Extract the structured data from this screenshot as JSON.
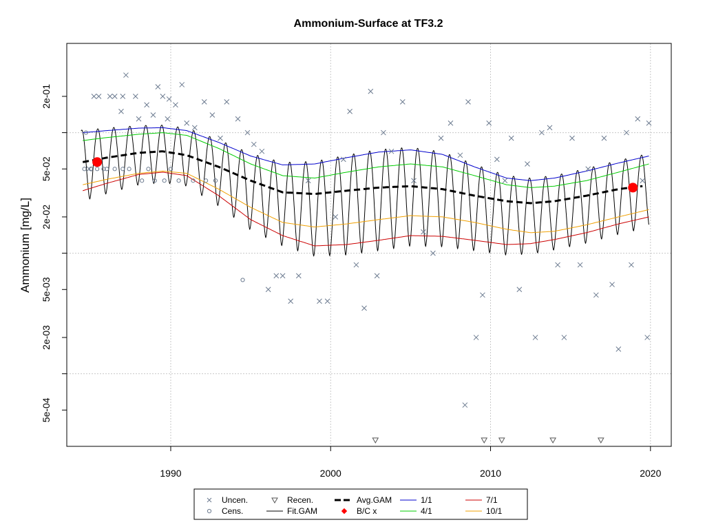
{
  "chart_data": {
    "type": "line",
    "title": "Ammonium-Surface at TF3.2",
    "xlabel": "",
    "ylabel": "Ammonium [mg/L]",
    "y_scale": "log",
    "xlim": [
      1983.5,
      2021.3
    ],
    "ylim": [
      0.00025,
      0.55
    ],
    "x_ticks": [
      {
        "value": 1990,
        "label": "1990"
      },
      {
        "value": 2000,
        "label": "2000"
      },
      {
        "value": 2010,
        "label": "2010"
      },
      {
        "value": 2020,
        "label": "2020"
      }
    ],
    "y_ticks": [
      {
        "value": 0.2,
        "label": "2e-01"
      },
      {
        "value": 0.05,
        "label": "5e-02"
      },
      {
        "value": 0.02,
        "label": "2e-02"
      },
      {
        "value": 0.005,
        "label": "5e-03"
      },
      {
        "value": 0.002,
        "label": "2e-03"
      },
      {
        "value": 0.0005,
        "label": "5e-04"
      }
    ],
    "y_gridlines": [
      0.1,
      0.01,
      0.001
    ],
    "x_gridlines": [
      1990,
      2000,
      2010,
      2020
    ],
    "grid": true,
    "legend_position": "bottom",
    "legend": [
      {
        "label": "Uncen.",
        "symbol": "x",
        "color": "#6b7a8f"
      },
      {
        "label": "Cens.",
        "symbol": "circle",
        "color": "#6b7a8f"
      },
      {
        "label": "Recen.",
        "symbol": "triangle-down",
        "color": "#555555"
      },
      {
        "label": "Fit.GAM",
        "symbol": "line",
        "color": "#000000"
      },
      {
        "label": "Avg.GAM",
        "symbol": "dashed-line",
        "color": "#000000"
      },
      {
        "label": "B/C x",
        "symbol": "diamond",
        "color": "#ff0000"
      },
      {
        "label": "1/1",
        "symbol": "line",
        "color": "#0000cc"
      },
      {
        "label": "4/1",
        "symbol": "line",
        "color": "#00cc00"
      },
      {
        "label": "7/1",
        "symbol": "line",
        "color": "#cc0000"
      },
      {
        "label": "10/1",
        "symbol": "line",
        "color": "#f0a000"
      }
    ],
    "colors": {
      "uncen": "#6b7a8f",
      "cens": "#6b7a8f",
      "recen": "#555555",
      "fit": "#000000",
      "avg": "#000000",
      "bc": "#ff0000",
      "jan": "#0000cc",
      "apr": "#00cc00",
      "jul": "#cc0000",
      "oct": "#f0a000"
    },
    "series": [
      {
        "name": "Avg.GAM",
        "x": [
          1984.5,
          1986,
          1988,
          1989.5,
          1991,
          1993,
          1995,
          1997,
          1999,
          2001,
          2003,
          2005,
          2007,
          2009,
          2011,
          2012.5,
          2014,
          2016,
          2018,
          2019.5
        ],
        "y": [
          0.057,
          0.062,
          0.068,
          0.07,
          0.065,
          0.052,
          0.04,
          0.032,
          0.031,
          0.033,
          0.035,
          0.036,
          0.034,
          0.03,
          0.027,
          0.026,
          0.027,
          0.03,
          0.034,
          0.036
        ]
      },
      {
        "name": "1/1",
        "x": [
          1984.5,
          1986,
          1988,
          1989.5,
          1991,
          1993,
          1995,
          1997,
          1999,
          2001,
          2003,
          2005,
          2007,
          2009,
          2011,
          2012.5,
          2014,
          2016,
          2018,
          2019.9
        ],
        "y": [
          0.1,
          0.104,
          0.109,
          0.11,
          0.104,
          0.083,
          0.064,
          0.054,
          0.055,
          0.062,
          0.069,
          0.072,
          0.066,
          0.052,
          0.042,
          0.04,
          0.042,
          0.048,
          0.056,
          0.064
        ]
      },
      {
        "name": "4/1",
        "x": [
          1984.5,
          1986,
          1988,
          1989.5,
          1991,
          1993,
          1995,
          1997,
          1999,
          2001,
          2003,
          2005,
          2007,
          2009,
          2011,
          2012.5,
          2014,
          2016,
          2018,
          2019.9
        ],
        "y": [
          0.086,
          0.091,
          0.097,
          0.1,
          0.095,
          0.074,
          0.055,
          0.044,
          0.042,
          0.047,
          0.052,
          0.055,
          0.052,
          0.044,
          0.037,
          0.035,
          0.036,
          0.04,
          0.047,
          0.055
        ]
      },
      {
        "name": "7/1",
        "x": [
          1984.5,
          1986,
          1988,
          1989.5,
          1991,
          1993,
          1995,
          1997,
          1999,
          2001,
          2003,
          2005,
          2007,
          2009,
          2011,
          2012.5,
          2014,
          2016,
          2018,
          2019.9
        ],
        "y": [
          0.033,
          0.038,
          0.045,
          0.047,
          0.044,
          0.03,
          0.019,
          0.014,
          0.0115,
          0.0118,
          0.0128,
          0.014,
          0.0138,
          0.0128,
          0.0118,
          0.012,
          0.013,
          0.0148,
          0.0175,
          0.02
        ]
      },
      {
        "name": "10/1",
        "x": [
          1984.5,
          1986,
          1988,
          1989.5,
          1991,
          1993,
          1995,
          1997,
          1999,
          2001,
          2003,
          2005,
          2007,
          2009,
          2011,
          2012.5,
          2014,
          2016,
          2018,
          2019.9
        ],
        "y": [
          0.037,
          0.041,
          0.046,
          0.048,
          0.046,
          0.034,
          0.024,
          0.018,
          0.0165,
          0.0175,
          0.019,
          0.0205,
          0.02,
          0.018,
          0.0158,
          0.0148,
          0.0152,
          0.0172,
          0.02,
          0.023
        ]
      }
    ],
    "bc_points": [
      {
        "x": 1985.4,
        "y": 0.057
      },
      {
        "x": 2018.9,
        "y": 0.035
      }
    ],
    "recen_points": [
      {
        "x": 2002.8,
        "y": 0.00028
      },
      {
        "x": 2009.6,
        "y": 0.00028
      },
      {
        "x": 2010.7,
        "y": 0.00028
      },
      {
        "x": 2013.9,
        "y": 0.00028
      },
      {
        "x": 2016.9,
        "y": 0.00028
      }
    ],
    "cens_points": [
      {
        "x": 1984.6,
        "y": 0.05
      },
      {
        "x": 1985.0,
        "y": 0.05
      },
      {
        "x": 1985.4,
        "y": 0.05
      },
      {
        "x": 1985.8,
        "y": 0.05
      },
      {
        "x": 1986.5,
        "y": 0.05
      },
      {
        "x": 1987.0,
        "y": 0.05
      },
      {
        "x": 1987.4,
        "y": 0.05
      },
      {
        "x": 1988.6,
        "y": 0.05
      },
      {
        "x": 1988.2,
        "y": 0.04
      },
      {
        "x": 1989.0,
        "y": 0.04
      },
      {
        "x": 1989.6,
        "y": 0.04
      },
      {
        "x": 1990.5,
        "y": 0.04
      },
      {
        "x": 1991.4,
        "y": 0.04
      },
      {
        "x": 1992.2,
        "y": 0.04
      },
      {
        "x": 1992.8,
        "y": 0.04
      },
      {
        "x": 1994.5,
        "y": 0.006
      },
      {
        "x": 1986.0,
        "y": 0.05
      },
      {
        "x": 1990.0,
        "y": 0.05
      },
      {
        "x": 1984.7,
        "y": 0.1
      }
    ],
    "uncen_points": [
      {
        "x": 1984.9,
        "y": 0.05
      },
      {
        "x": 1985.2,
        "y": 0.2
      },
      {
        "x": 1985.5,
        "y": 0.2
      },
      {
        "x": 1986.2,
        "y": 0.2
      },
      {
        "x": 1986.5,
        "y": 0.2
      },
      {
        "x": 1986.9,
        "y": 0.15
      },
      {
        "x": 1987.2,
        "y": 0.3
      },
      {
        "x": 1987.8,
        "y": 0.2
      },
      {
        "x": 1988.5,
        "y": 0.17
      },
      {
        "x": 1988.9,
        "y": 0.14
      },
      {
        "x": 1989.2,
        "y": 0.24
      },
      {
        "x": 1989.5,
        "y": 0.2
      },
      {
        "x": 1989.8,
        "y": 0.13
      },
      {
        "x": 1990.3,
        "y": 0.17
      },
      {
        "x": 1990.7,
        "y": 0.25
      },
      {
        "x": 1991.0,
        "y": 0.12
      },
      {
        "x": 1991.5,
        "y": 0.11
      },
      {
        "x": 1992.1,
        "y": 0.18
      },
      {
        "x": 1992.6,
        "y": 0.14
      },
      {
        "x": 1993.1,
        "y": 0.09
      },
      {
        "x": 1993.5,
        "y": 0.18
      },
      {
        "x": 1994.2,
        "y": 0.13
      },
      {
        "x": 1994.8,
        "y": 0.1
      },
      {
        "x": 1995.2,
        "y": 0.08
      },
      {
        "x": 1995.7,
        "y": 0.07
      },
      {
        "x": 1996.1,
        "y": 0.005
      },
      {
        "x": 1996.6,
        "y": 0.0065
      },
      {
        "x": 1997.0,
        "y": 0.0065
      },
      {
        "x": 1997.5,
        "y": 0.004
      },
      {
        "x": 1998.0,
        "y": 0.0065
      },
      {
        "x": 1998.6,
        "y": 0.04
      },
      {
        "x": 1999.3,
        "y": 0.004
      },
      {
        "x": 1999.8,
        "y": 0.004
      },
      {
        "x": 2000.3,
        "y": 0.02
      },
      {
        "x": 2000.8,
        "y": 0.06
      },
      {
        "x": 2001.2,
        "y": 0.15
      },
      {
        "x": 2001.6,
        "y": 0.008
      },
      {
        "x": 2002.1,
        "y": 0.0035
      },
      {
        "x": 2002.5,
        "y": 0.22
      },
      {
        "x": 2002.9,
        "y": 0.0065
      },
      {
        "x": 2003.3,
        "y": 0.1
      },
      {
        "x": 2003.8,
        "y": 0.07
      },
      {
        "x": 2004.5,
        "y": 0.18
      },
      {
        "x": 2005.2,
        "y": 0.04
      },
      {
        "x": 2005.8,
        "y": 0.015
      },
      {
        "x": 2006.4,
        "y": 0.01
      },
      {
        "x": 2006.9,
        "y": 0.09
      },
      {
        "x": 2007.5,
        "y": 0.12
      },
      {
        "x": 2008.1,
        "y": 0.065
      },
      {
        "x": 2008.6,
        "y": 0.18
      },
      {
        "x": 2009.1,
        "y": 0.002
      },
      {
        "x": 2009.5,
        "y": 0.0045
      },
      {
        "x": 2009.9,
        "y": 0.12
      },
      {
        "x": 2010.4,
        "y": 0.06
      },
      {
        "x": 2010.9,
        "y": 0.04
      },
      {
        "x": 2011.3,
        "y": 0.09
      },
      {
        "x": 2011.8,
        "y": 0.005
      },
      {
        "x": 2012.3,
        "y": 0.055
      },
      {
        "x": 2012.8,
        "y": 0.002
      },
      {
        "x": 2013.2,
        "y": 0.1
      },
      {
        "x": 2013.7,
        "y": 0.11
      },
      {
        "x": 2014.2,
        "y": 0.008
      },
      {
        "x": 2014.6,
        "y": 0.002
      },
      {
        "x": 2015.1,
        "y": 0.09
      },
      {
        "x": 2015.6,
        "y": 0.008
      },
      {
        "x": 2016.1,
        "y": 0.05
      },
      {
        "x": 2016.6,
        "y": 0.0045
      },
      {
        "x": 2017.1,
        "y": 0.09
      },
      {
        "x": 2017.6,
        "y": 0.0055
      },
      {
        "x": 2018.0,
        "y": 0.0016
      },
      {
        "x": 2018.5,
        "y": 0.1
      },
      {
        "x": 2018.8,
        "y": 0.008
      },
      {
        "x": 2019.2,
        "y": 0.13
      },
      {
        "x": 2019.5,
        "y": 0.04
      },
      {
        "x": 2019.8,
        "y": 0.002
      },
      {
        "x": 2019.9,
        "y": 0.12
      },
      {
        "x": 2008.4,
        "y": 0.00055
      },
      {
        "x": 1988.0,
        "y": 0.13
      },
      {
        "x": 1987.0,
        "y": 0.2
      },
      {
        "x": 1989.9,
        "y": 0.19
      }
    ],
    "fit_gam": {
      "start": 1984.4,
      "end": 2019.9,
      "peak_month_fraction": 0.04,
      "comment_free": true
    }
  }
}
